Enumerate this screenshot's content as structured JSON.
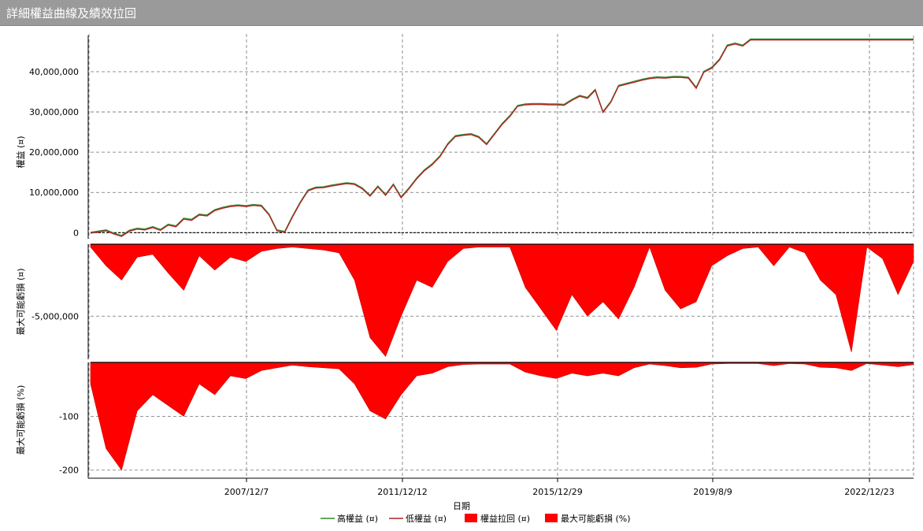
{
  "window": {
    "title": "詳細權益曲線及績效拉回"
  },
  "chart_data": [
    {
      "type": "line",
      "panel": "equity",
      "ylabel": "權益 (¤)",
      "ylim": [
        -1500000,
        49000000
      ],
      "yticks": [
        0,
        10000000,
        20000000,
        30000000,
        40000000
      ],
      "ytick_labels": [
        "0",
        "10,000,000",
        "20,000,000",
        "30,000,000",
        "40,000,000"
      ],
      "grid": true,
      "series": [
        {
          "name": "高權益 (¤)",
          "color": "#2e8b2e"
        },
        {
          "name": "低權益 (¤)",
          "color": "#b22222"
        }
      ],
      "x": [
        0.0,
        0.5,
        1.0,
        1.5,
        2.0,
        2.5,
        3.0,
        3.5,
        4.0,
        4.5,
        5.0,
        5.5,
        6.0,
        6.5,
        7.0,
        7.5,
        8.0,
        8.5,
        9.0,
        9.5,
        10.0,
        10.5,
        11.0,
        11.5,
        12.0,
        12.5,
        13.0,
        13.5,
        14.0,
        14.5,
        15.0,
        15.5,
        16.0,
        16.5,
        17.0,
        17.5,
        18.0,
        18.5,
        19.0,
        19.5,
        20.0,
        20.5,
        21.0,
        21.5,
        22.0,
        22.5,
        23.0,
        23.5,
        24.0,
        24.5,
        25.0,
        25.5,
        26.0,
        26.5,
        27.0,
        27.5,
        28.0,
        28.5,
        29.0,
        29.5,
        30.0,
        30.5,
        31.0,
        31.5,
        32.0,
        32.5,
        33.0,
        33.5,
        34.0,
        34.5,
        35.0,
        35.5,
        36.0,
        36.5,
        37.0,
        37.5,
        38.0,
        38.5,
        39.0,
        39.5,
        40.0,
        40.5,
        41.0,
        41.5,
        42.0,
        42.5,
        43.0,
        43.5,
        44.0,
        44.5,
        45.0,
        45.5,
        46.0,
        46.5,
        47.0,
        47.5,
        48.0,
        48.5,
        49.0,
        49.5,
        50.0,
        50.5,
        51.0,
        51.5,
        52.0,
        52.5,
        53.0
      ],
      "values": [
        0,
        300000,
        600000,
        -200000,
        -800000,
        500000,
        1000000,
        800000,
        1400000,
        700000,
        2000000,
        1600000,
        3500000,
        3200000,
        4500000,
        4300000,
        5600000,
        6200000,
        6600000,
        6800000,
        6600000,
        6900000,
        6700000,
        4500000,
        600000,
        200000,
        4000000,
        7500000,
        10500000,
        11200000,
        11300000,
        11700000,
        12000000,
        12300000,
        12100000,
        11000000,
        9200000,
        11500000,
        9400000,
        12000000,
        8800000,
        11000000,
        13500000,
        15500000,
        17000000,
        19000000,
        22000000,
        24000000,
        24300000,
        24500000,
        23800000,
        22000000,
        24500000,
        27000000,
        29000000,
        31500000,
        31900000,
        32000000,
        32000000,
        31900000,
        31900000,
        31800000,
        33000000,
        34000000,
        33500000,
        35500000,
        30000000,
        32500000,
        36500000,
        37000000,
        37500000,
        38000000,
        38400000,
        38600000,
        38500000,
        38700000,
        38700000,
        38500000,
        36000000,
        40000000,
        41000000,
        43000000,
        46500000,
        47000000,
        46500000,
        48000000,
        48000000,
        48000000,
        48000000,
        48000000,
        48000000,
        48000000,
        48000000,
        48000000,
        48000000,
        48000000,
        48000000,
        48000000,
        48000000,
        48000000,
        48000000,
        48000000,
        48000000,
        48000000,
        48000000,
        48000000,
        48000000
      ]
    },
    {
      "type": "area",
      "panel": "drawdown",
      "ylabel": "最大可能虧損 (¤)",
      "ylim": [
        -8000000,
        0
      ],
      "yticks": [
        -5000000
      ],
      "ytick_labels": [
        "-5,000,000"
      ],
      "grid": true,
      "series": [
        {
          "name": "權益拉回 (¤)",
          "color": "#ff0000"
        }
      ],
      "x": [
        0,
        1,
        2,
        3,
        4,
        5,
        6,
        7,
        8,
        9,
        10,
        11,
        12,
        13,
        14,
        15,
        16,
        17,
        18,
        19,
        20,
        21,
        22,
        23,
        24,
        25,
        26,
        27,
        28,
        29,
        30,
        31,
        32,
        33,
        34,
        35,
        36,
        37,
        38,
        39,
        40,
        41,
        42,
        43,
        44,
        45,
        46,
        47,
        48,
        49,
        50,
        51,
        52,
        53
      ],
      "values": [
        -200000,
        -1500000,
        -2500000,
        -900000,
        -700000,
        -2000000,
        -3200000,
        -800000,
        -1800000,
        -900000,
        -1200000,
        -500000,
        -300000,
        -200000,
        -300000,
        -400000,
        -600000,
        -2500000,
        -6500000,
        -7800000,
        -5000000,
        -2500000,
        -3000000,
        -1200000,
        -300000,
        -200000,
        -200000,
        -200000,
        -3000000,
        -4500000,
        -6000000,
        -3500000,
        -5000000,
        -4000000,
        -5200000,
        -3000000,
        -200000,
        -3200000,
        -4500000,
        -4000000,
        -1500000,
        -800000,
        -300000,
        -200000,
        -1500000,
        -200000,
        -600000,
        -2500000,
        -3500000,
        -7500000,
        -200000,
        -1000000,
        -3500000,
        -1200000
      ]
    },
    {
      "type": "area",
      "panel": "drawdown_pct",
      "ylabel": "最大可能虧損 (%)",
      "ylim": [
        -215,
        0
      ],
      "yticks": [
        -100,
        -200
      ],
      "ytick_labels": [
        "-100",
        "-200"
      ],
      "grid": true,
      "xlabel": "日期",
      "x_tick_labels": [
        "2007/12/7",
        "2011/12/12",
        "2015/12/29",
        "2019/8/9",
        "2022/12/23"
      ],
      "series": [
        {
          "name": "最大可能虧損 (%)",
          "color": "#ff0000"
        }
      ],
      "x": [
        0,
        1,
        2,
        3,
        4,
        5,
        6,
        7,
        8,
        9,
        10,
        11,
        12,
        13,
        14,
        15,
        16,
        17,
        18,
        19,
        20,
        21,
        22,
        23,
        24,
        25,
        26,
        27,
        28,
        29,
        30,
        31,
        32,
        33,
        34,
        35,
        36,
        37,
        38,
        39,
        40,
        41,
        42,
        43,
        44,
        45,
        46,
        47,
        48,
        49,
        50,
        51,
        52,
        53
      ],
      "values": [
        -40,
        -160,
        -200,
        -90,
        -60,
        -80,
        -100,
        -40,
        -60,
        -25,
        -30,
        -15,
        -10,
        -5,
        -8,
        -10,
        -12,
        -40,
        -90,
        -105,
        -60,
        -25,
        -20,
        -8,
        -4,
        -3,
        -3,
        -3,
        -18,
        -25,
        -30,
        -20,
        -25,
        -20,
        -25,
        -10,
        -3,
        -6,
        -10,
        -9,
        -3,
        -2,
        -2,
        -2,
        -6,
        -2,
        -3,
        -9,
        -10,
        -15,
        -2,
        -5,
        -8,
        -4
      ]
    }
  ],
  "legend": [
    {
      "label": "高權益 (¤)",
      "type": "line",
      "color": "#2e8b2e"
    },
    {
      "label": "低權益 (¤)",
      "type": "line",
      "color": "#b22222"
    },
    {
      "label": "權益拉回 (¤)",
      "type": "box",
      "color": "#ff0000"
    },
    {
      "label": "最大可能虧損 (%)",
      "type": "box",
      "color": "#ff0000"
    }
  ]
}
